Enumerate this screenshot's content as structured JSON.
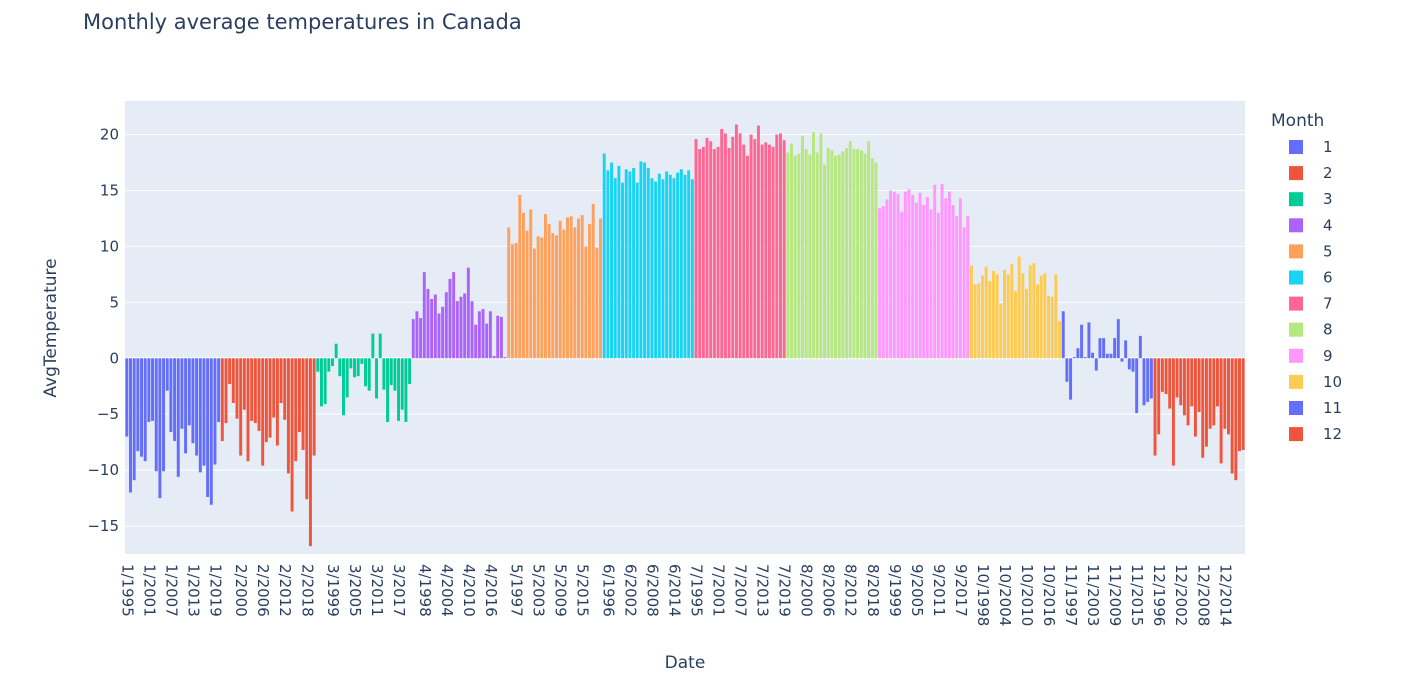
{
  "chart_data": {
    "type": "bar",
    "title": "Monthly average temperatures in Canada",
    "xlabel": "Date",
    "ylabel": "AvgTemperature",
    "ylim": [
      -17.5,
      23
    ],
    "yticks": [
      20,
      15,
      10,
      5,
      0,
      -5,
      -10,
      -15
    ],
    "ytick_labels": [
      "20",
      "15",
      "10",
      "5",
      "0",
      "−5",
      "−10",
      "−15"
    ],
    "xtick_labels": [
      "1/1995",
      "1/2001",
      "1/2007",
      "1/2013",
      "1/2019",
      "2/2000",
      "2/2006",
      "2/2012",
      "2/2018",
      "3/1999",
      "3/2005",
      "3/2011",
      "3/2017",
      "4/1998",
      "4/2004",
      "4/2010",
      "4/2016",
      "5/1997",
      "5/2003",
      "5/2009",
      "5/2015",
      "6/1996",
      "6/2002",
      "6/2008",
      "6/2014",
      "7/1995",
      "7/2001",
      "7/2007",
      "7/2013",
      "7/2019",
      "8/2000",
      "8/2006",
      "8/2012",
      "8/2018",
      "9/1999",
      "9/2005",
      "9/2011",
      "9/2017",
      "10/1998",
      "10/2004",
      "10/2010",
      "10/2016",
      "11/1997",
      "11/2003",
      "11/2009",
      "11/2015",
      "12/1996",
      "12/2002",
      "12/2008",
      "12/2014"
    ],
    "legend_title": "Month",
    "legend_position": "right",
    "grid": true,
    "x_category_order": "month then year (1995-2020 for months 1-5, 1995-2019 for months 6-12)",
    "series": [
      {
        "name": "1",
        "color": "#636efa",
        "start_year": 1995,
        "values": [
          -7.0,
          -12.0,
          -10.9,
          -8.3,
          -8.8,
          -9.2,
          -5.7,
          -5.6,
          -10.1,
          -12.5,
          -10.1,
          -2.9,
          -6.6,
          -7.4,
          -10.6,
          -6.3,
          -8.5,
          -6.0,
          -7.6,
          -8.7,
          -10.2,
          -9.6,
          -12.4,
          -13.1,
          -9.5,
          -5.7
        ]
      },
      {
        "name": "2",
        "color": "#ef553b",
        "start_year": 1995,
        "values": [
          -7.4,
          -5.8,
          -2.3,
          -4.0,
          -5.4,
          -8.7,
          -4.6,
          -9.2,
          -5.6,
          -5.8,
          -6.5,
          -9.6,
          -7.5,
          -7.1,
          -5.3,
          -7.8,
          -4.0,
          -5.5,
          -10.3,
          -13.7,
          -9.2,
          -6.6,
          -8.2,
          -12.6,
          -16.8,
          -8.7
        ]
      },
      {
        "name": "3",
        "color": "#00cc96",
        "start_year": 1995,
        "values": [
          -1.2,
          -4.3,
          -4.1,
          -1.2,
          -0.7,
          1.3,
          -1.6,
          -5.1,
          -3.5,
          -0.9,
          -1.7,
          -1.6,
          -0.5,
          -2.5,
          -2.9,
          2.2,
          -3.6,
          2.2,
          -2.8,
          -5.7,
          -2.4,
          -2.9,
          -5.6,
          -4.6,
          -5.7,
          -2.3
        ]
      },
      {
        "name": "4",
        "color": "#ab63fa",
        "start_year": 1995,
        "values": [
          3.5,
          4.2,
          3.6,
          7.7,
          6.2,
          5.3,
          5.7,
          4.0,
          4.6,
          5.9,
          7.1,
          7.7,
          5.1,
          5.5,
          5.8,
          8.1,
          5.1,
          3.0,
          4.2,
          4.4,
          3.1,
          4.2,
          0.2,
          3.8,
          3.7,
          0.1
        ]
      },
      {
        "name": "5",
        "color": "#ffa15a",
        "start_year": 1995,
        "values": [
          11.7,
          10.2,
          10.3,
          14.6,
          13.0,
          11.4,
          13.3,
          9.8,
          10.9,
          10.8,
          12.9,
          12.0,
          11.2,
          11.0,
          12.3,
          11.5,
          12.6,
          12.7,
          11.7,
          12.5,
          12.8,
          10.0,
          12.0,
          13.8,
          9.9,
          12.5
        ]
      },
      {
        "name": "6",
        "color": "#19d3f3",
        "start_year": 1995,
        "values": [
          18.3,
          16.8,
          17.5,
          16.1,
          17.2,
          15.7,
          16.9,
          16.7,
          17.0,
          15.7,
          17.6,
          17.5,
          17.0,
          16.1,
          15.8,
          16.5,
          16.0,
          16.7,
          16.4,
          16.1,
          16.6,
          16.9,
          16.4,
          16.8,
          16.0
        ]
      },
      {
        "name": "7",
        "color": "#ff6692",
        "start_year": 1995,
        "values": [
          19.6,
          18.7,
          18.9,
          19.7,
          19.4,
          18.7,
          18.9,
          20.5,
          20.1,
          18.8,
          19.8,
          20.9,
          20.1,
          19.1,
          18.1,
          20.0,
          19.6,
          20.8,
          19.1,
          19.3,
          19.1,
          18.9,
          20.0,
          20.1,
          19.5
        ]
      },
      {
        "name": "8",
        "color": "#b6e880",
        "start_year": 1995,
        "values": [
          18.4,
          19.2,
          18.1,
          18.3,
          19.9,
          18.7,
          18.2,
          20.2,
          18.4,
          20.1,
          17.3,
          18.8,
          18.6,
          18.1,
          18.2,
          18.5,
          18.8,
          19.4,
          18.7,
          18.7,
          18.6,
          18.3,
          19.4,
          17.9,
          17.5
        ]
      },
      {
        "name": "9",
        "color": "#ff97ff",
        "start_year": 1995,
        "values": [
          13.4,
          13.6,
          14.2,
          15.0,
          14.9,
          14.7,
          13.1,
          14.9,
          15.1,
          14.6,
          13.9,
          14.8,
          13.7,
          14.4,
          13.3,
          15.5,
          13.0,
          15.6,
          14.3,
          14.9,
          13.7,
          12.7,
          14.3,
          11.7,
          12.7
        ]
      },
      {
        "name": "10",
        "color": "#fecb52",
        "start_year": 1995,
        "values": [
          8.3,
          6.6,
          6.7,
          7.4,
          8.2,
          6.9,
          7.8,
          7.5,
          4.9,
          7.9,
          7.5,
          8.4,
          6.0,
          9.1,
          7.6,
          6.2,
          8.3,
          8.5,
          6.6,
          7.4,
          7.6,
          5.6,
          5.5,
          7.5,
          3.3
        ]
      },
      {
        "name": "11",
        "color": "#636efa",
        "start_year": 1995,
        "values": [
          4.2,
          -2.1,
          -3.7,
          0.1,
          0.9,
          3.0,
          0.1,
          3.2,
          0.5,
          -1.1,
          1.8,
          1.8,
          0.4,
          0.4,
          1.8,
          3.5,
          -0.3,
          1.6,
          -1.0,
          -1.2,
          -4.9,
          2.0,
          -4.2,
          -3.9,
          -3.6
        ]
      },
      {
        "name": "12",
        "color": "#ef553b",
        "start_year": 1995,
        "values": [
          -8.7,
          -6.8,
          -3.0,
          -3.2,
          -4.5,
          -9.6,
          -3.5,
          -4.2,
          -5.1,
          -6.0,
          -4.3,
          -7.0,
          -4.8,
          -8.9,
          -7.9,
          -6.3,
          -6.0,
          -4.3,
          -9.4,
          -6.3,
          -6.8,
          -10.3,
          -10.9,
          -8.3,
          -8.2
        ]
      }
    ]
  }
}
